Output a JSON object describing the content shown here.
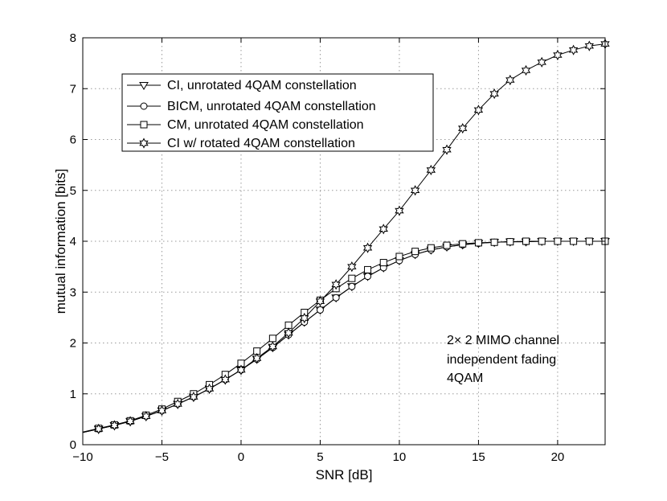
{
  "chart_data": {
    "type": "line",
    "title": "",
    "xlabel": "SNR [dB]",
    "ylabel": "mutual information [bits]",
    "xlim": [
      -10,
      23
    ],
    "ylim": [
      0,
      8
    ],
    "grid": true,
    "x_ticks": [
      -10,
      -5,
      0,
      5,
      10,
      15,
      20
    ],
    "x_tick_labels": [
      "−10",
      "−5",
      "0",
      "5",
      "10",
      "15",
      "20"
    ],
    "y_ticks": [
      0,
      1,
      2,
      3,
      4,
      5,
      6,
      7,
      8
    ],
    "y_tick_labels": [
      "0",
      "1",
      "2",
      "3",
      "4",
      "5",
      "6",
      "7",
      "8"
    ],
    "legend_position": "upper-left",
    "annotation": [
      "2× 2 MIMO channel",
      "independent fading",
      "4QAM"
    ],
    "x": [
      -9,
      -8,
      -7,
      -6,
      -5,
      -4,
      -3,
      -2,
      -1,
      0,
      1,
      2,
      3,
      4,
      5,
      6,
      7,
      8,
      9,
      10,
      11,
      12,
      13,
      14,
      15,
      16,
      17,
      18,
      19,
      20,
      21,
      22,
      23
    ],
    "series": [
      {
        "name": "CI, unrotated 4QAM constellation",
        "marker": "triangle-down",
        "values": [
          0.31,
          0.38,
          0.46,
          0.56,
          0.67,
          0.8,
          0.94,
          1.1,
          1.28,
          1.47,
          1.68,
          1.91,
          2.16,
          2.41,
          2.65,
          2.89,
          3.11,
          3.31,
          3.48,
          3.62,
          3.74,
          3.83,
          3.89,
          3.93,
          3.96,
          3.98,
          3.99,
          3.99,
          4.0,
          4.0,
          4.0,
          4.0,
          4.0
        ]
      },
      {
        "name": "BICM, unrotated 4QAM constellation",
        "marker": "circle",
        "values": [
          0.31,
          0.38,
          0.46,
          0.56,
          0.67,
          0.8,
          0.94,
          1.1,
          1.28,
          1.47,
          1.68,
          1.91,
          2.16,
          2.41,
          2.65,
          2.89,
          3.11,
          3.31,
          3.48,
          3.62,
          3.74,
          3.83,
          3.89,
          3.93,
          3.96,
          3.98,
          3.99,
          3.99,
          4.0,
          4.0,
          4.0,
          4.0,
          4.0
        ]
      },
      {
        "name": "CM, unrotated 4QAM constellation",
        "marker": "square",
        "values": [
          0.32,
          0.39,
          0.47,
          0.58,
          0.7,
          0.85,
          1.0,
          1.18,
          1.38,
          1.6,
          1.84,
          2.09,
          2.35,
          2.6,
          2.84,
          3.07,
          3.27,
          3.44,
          3.58,
          3.7,
          3.8,
          3.87,
          3.92,
          3.95,
          3.97,
          3.98,
          3.99,
          4.0,
          4.0,
          4.0,
          4.0,
          4.0,
          4.0
        ]
      },
      {
        "name": "CI w/ rotated 4QAM constellation",
        "marker": "star",
        "values": [
          0.31,
          0.38,
          0.46,
          0.56,
          0.67,
          0.8,
          0.94,
          1.1,
          1.28,
          1.47,
          1.7,
          1.93,
          2.2,
          2.49,
          2.82,
          3.15,
          3.5,
          3.87,
          4.24,
          4.6,
          5.0,
          5.4,
          5.8,
          6.22,
          6.58,
          6.9,
          7.17,
          7.36,
          7.52,
          7.66,
          7.76,
          7.84,
          7.88
        ]
      }
    ]
  }
}
